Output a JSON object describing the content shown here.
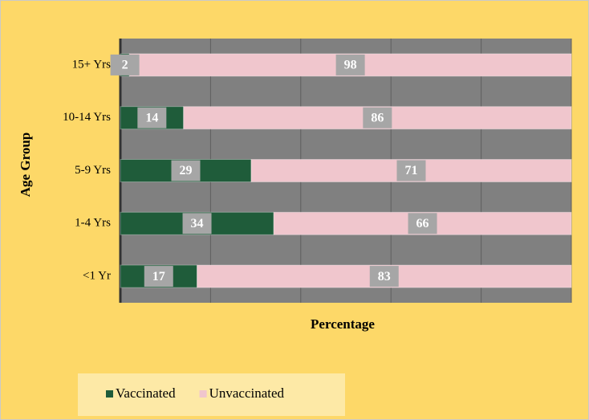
{
  "chart_data": {
    "type": "stacked-bar-horizontal",
    "y_axis_title": "Age Group",
    "x_axis_title": "Percentage",
    "categories": [
      "15+ Yrs",
      "10-14 Yrs",
      "5-9 Yrs",
      "1-4 Yrs",
      "<1 Yr"
    ],
    "series": [
      {
        "name": "Vaccinated",
        "color": "#1f5c3a",
        "values": [
          2,
          14,
          29,
          34,
          17
        ]
      },
      {
        "name": "Unvaccinated",
        "color": "#f0c6cd",
        "values": [
          98,
          86,
          71,
          66,
          83
        ]
      }
    ],
    "xlim": [
      0,
      100
    ],
    "xgrid": [
      0,
      20,
      40,
      60,
      80,
      100
    ],
    "legend": "bottom-left"
  }
}
